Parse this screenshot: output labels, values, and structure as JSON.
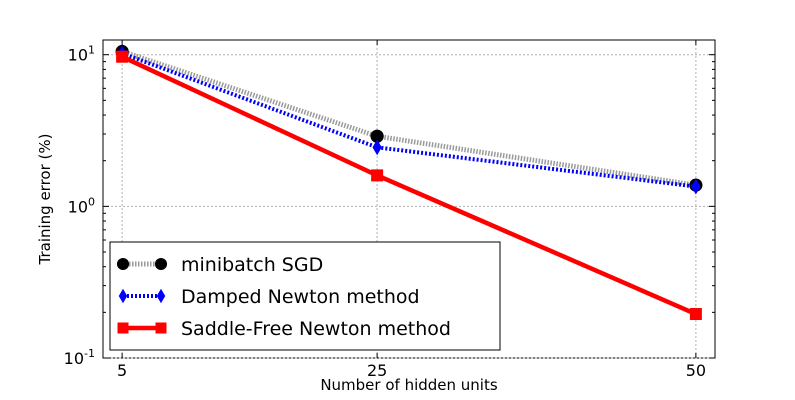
{
  "chart_data": {
    "type": "line",
    "xlabel": "Number of hidden units",
    "ylabel": "Training error (%)",
    "y_scale": "log",
    "ylim": [
      0.1,
      12.5
    ],
    "xlim": [
      3.5,
      51.5
    ],
    "x": [
      5,
      25,
      50
    ],
    "x_ticks": [
      "5",
      "25",
      "50"
    ],
    "y_ticks": [
      {
        "value": 10,
        "base": "10",
        "exp": "1"
      },
      {
        "value": 1,
        "base": "10",
        "exp": "0"
      },
      {
        "value": 0.1,
        "base": "10",
        "exp": "-1"
      }
    ],
    "grid": true,
    "legend_position": "lower-left",
    "series": [
      {
        "name": "minibatch SGD",
        "values": [
          10.5,
          2.9,
          1.38
        ],
        "color": "#000000",
        "line_color": "#9a9a9a",
        "marker": "circle",
        "line_style": "dotted"
      },
      {
        "name": "Damped Newton method",
        "values": [
          10.2,
          2.45,
          1.35
        ],
        "color": "#0000ff",
        "line_color": "#0000ff",
        "marker": "diamond",
        "line_style": "dotted"
      },
      {
        "name": "Saddle-Free Newton method",
        "values": [
          9.7,
          1.6,
          0.195
        ],
        "color": "#ff0000",
        "line_color": "#ff0000",
        "marker": "square",
        "line_style": "solid"
      }
    ]
  }
}
